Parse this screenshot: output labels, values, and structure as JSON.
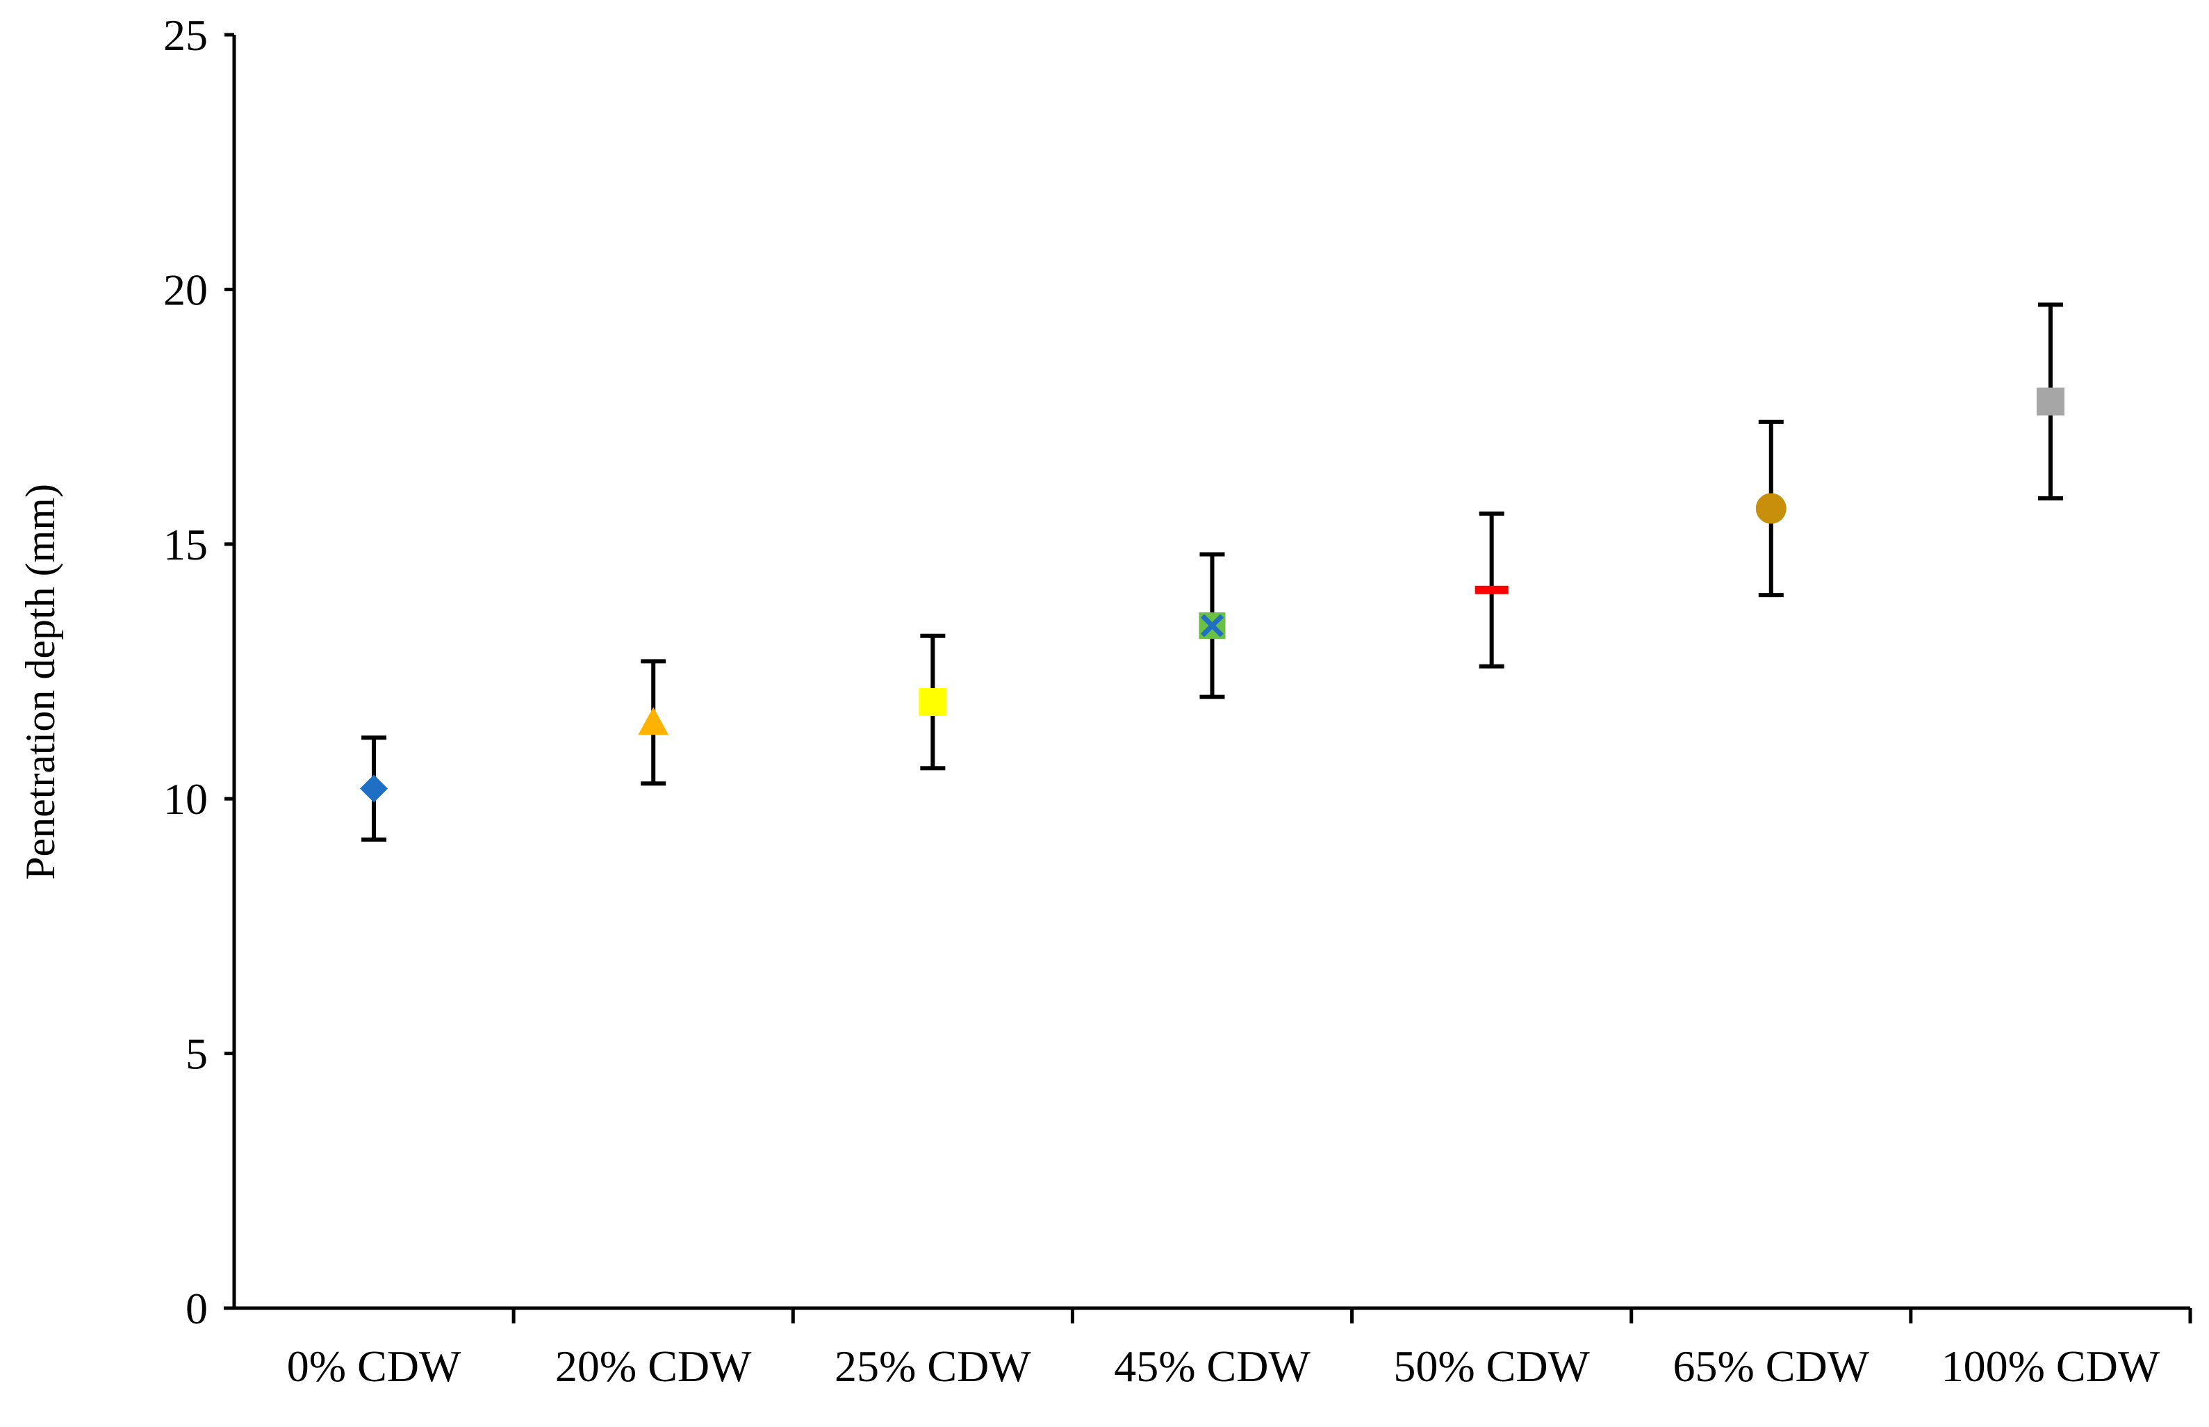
{
  "chart_data": {
    "type": "scatter",
    "title": "",
    "xlabel": "",
    "ylabel": "Penetration depth (mm)",
    "ylim": [
      0,
      25
    ],
    "yticks": [
      "0",
      "5",
      "10",
      "15",
      "20",
      "25"
    ],
    "grid": false,
    "legend": "none",
    "categories": [
      "0% CDW",
      "20% CDW",
      "25% CDW",
      "45% CDW",
      "50% CDW",
      "65% CDW",
      "100% CDW"
    ],
    "points": [
      {
        "category": "0% CDW",
        "value": 10.2,
        "error_low": 9.2,
        "error_high": 11.2,
        "marker": "diamond",
        "color": "#1f6fc5"
      },
      {
        "category": "20% CDW",
        "value": 11.5,
        "error_low": 10.3,
        "error_high": 12.7,
        "marker": "triangle",
        "color": "#ffb300"
      },
      {
        "category": "25% CDW",
        "value": 11.9,
        "error_low": 10.6,
        "error_high": 13.2,
        "marker": "square",
        "color": "#ffff00"
      },
      {
        "category": "45% CDW",
        "value": 13.4,
        "error_low": 12.0,
        "error_high": 14.8,
        "marker": "x-square",
        "color": "#6abf45",
        "accent": "#1f6fc5"
      },
      {
        "category": "50% CDW",
        "value": 14.1,
        "error_low": 12.6,
        "error_high": 15.6,
        "marker": "dash",
        "color": "#ff0000"
      },
      {
        "category": "65% CDW",
        "value": 15.7,
        "error_low": 14.0,
        "error_high": 17.4,
        "marker": "circle",
        "color": "#c8900a"
      },
      {
        "category": "100% CDW",
        "value": 17.8,
        "error_low": 15.9,
        "error_high": 19.7,
        "marker": "square",
        "color": "#a6a6a6"
      }
    ],
    "error_bar_color": "#000000",
    "axis_color": "#000000"
  }
}
